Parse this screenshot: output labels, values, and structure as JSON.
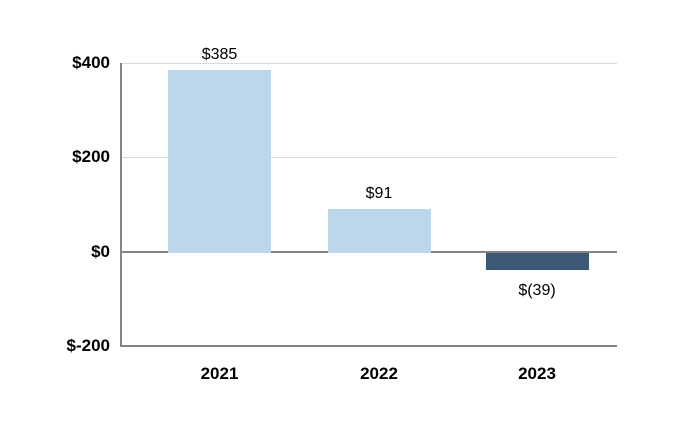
{
  "chart_data": {
    "type": "bar",
    "categories": [
      "2021",
      "2022",
      "2023"
    ],
    "series": [
      {
        "name": "values",
        "values": [
          385,
          91,
          -39
        ]
      }
    ],
    "data_labels": [
      "$385",
      "$91",
      "$(39)"
    ],
    "title": "",
    "xlabel": "",
    "ylabel": "",
    "ylim": [
      -200,
      400
    ],
    "yticks": [
      {
        "value": 400,
        "label": "$400"
      },
      {
        "value": 200,
        "label": "$200"
      },
      {
        "value": 0,
        "label": "$0"
      },
      {
        "value": -200,
        "label": "$-200"
      }
    ],
    "grid": true,
    "legend": false,
    "colors": {
      "bar_positive": "#BCD6EA",
      "bar_negative": "#3C5A78",
      "gridline": "#D9D9D9",
      "axis_line": "#858585",
      "text": "#000000"
    }
  }
}
